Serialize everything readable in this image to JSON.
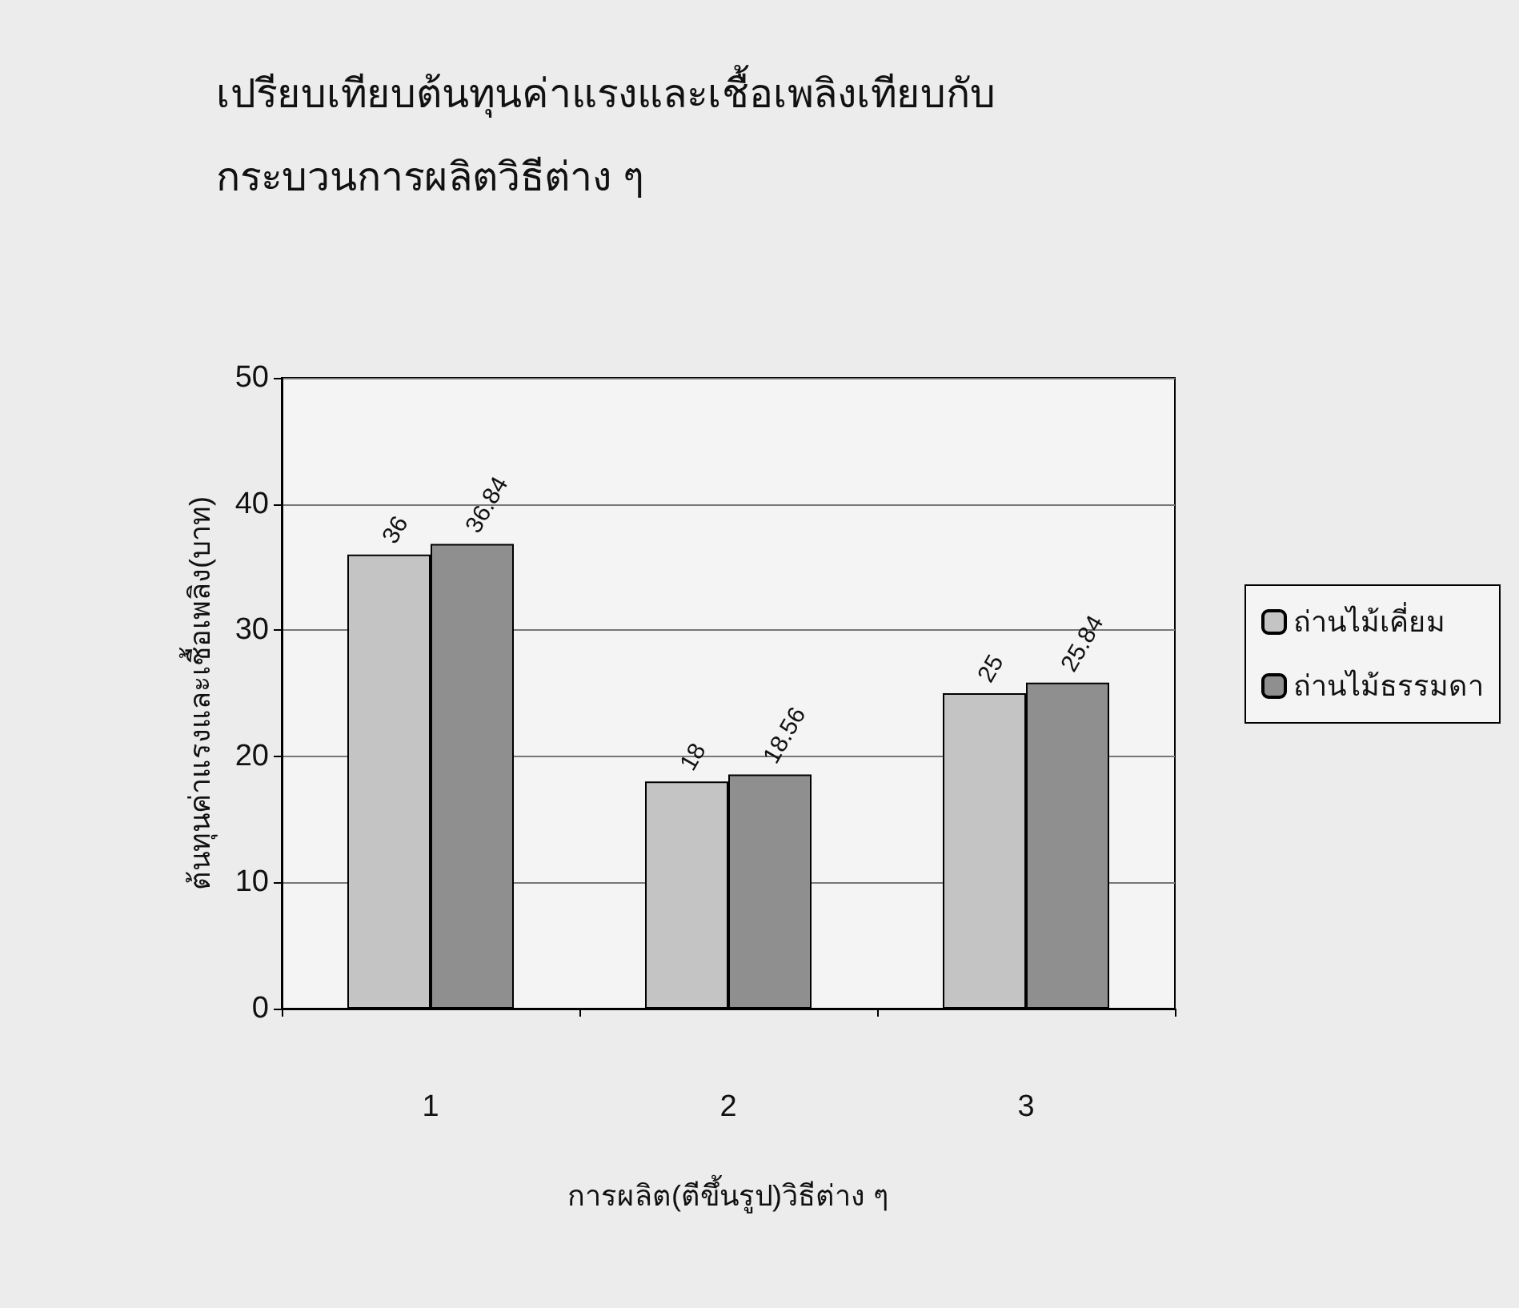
{
  "chart_data": {
    "type": "bar",
    "title": "เปรียบเทียบต้นทุนค่าแรงและเชื้อเพลิงเทียบกับ\nกระบวนการผลิตวิธีต่าง ๆ",
    "xlabel": "การผลิต(ตีขึ้นรูป)วิธีต่าง ๆ",
    "ylabel": "ต้นทุนค่าแรงและเชื้อเพลิง(บาท)",
    "categories": [
      "1",
      "2",
      "3"
    ],
    "series": [
      {
        "name": "ถ่านไม้เคี่ยม",
        "color": "#c4c4c4",
        "values": [
          36,
          18,
          25
        ]
      },
      {
        "name": "ถ่านไม้ธรรมดา",
        "color": "#8f8f8f",
        "values": [
          36.84,
          18.56,
          25.84
        ]
      }
    ],
    "ylim": [
      0,
      50
    ],
    "yticks": [
      0,
      10,
      20,
      30,
      40,
      50
    ],
    "grid": "y",
    "legend": "right",
    "data_labels": true
  }
}
